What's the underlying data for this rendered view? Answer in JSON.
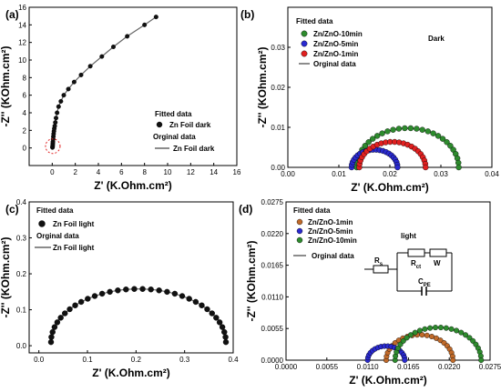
{
  "chart_data": [
    {
      "panel_label": "(a)",
      "type": "line",
      "xlabel": "Z' (K.Ohm.cm²)",
      "ylabel": "-Z'' (KOhm.cm²)",
      "xlim": [
        -2,
        16
      ],
      "ylim": [
        -2,
        16
      ],
      "xticks": [
        "0",
        "2",
        "4",
        "6",
        "8",
        "10",
        "12",
        "14",
        "16"
      ],
      "yticks": [
        "0",
        "2",
        "4",
        "6",
        "8",
        "10",
        "12",
        "14",
        "16"
      ],
      "legend": {
        "title": "Fitted data",
        "sub_title": "Orginal data",
        "fitted_label": "Zn Foil dark",
        "original_label": "Zn Foil dark"
      },
      "series": [
        {
          "name": "Zn Foil dark",
          "x": [
            0.02,
            0.03,
            0.04,
            0.05,
            0.06,
            0.08,
            0.1,
            0.12,
            0.15,
            0.18,
            0.22,
            0.27,
            0.33,
            0.42,
            0.55,
            0.75,
            1.0,
            1.4,
            1.9,
            2.5,
            3.3,
            4.3,
            5.3,
            6.5,
            8.0,
            9.0
          ],
          "y": [
            0.05,
            0.15,
            0.3,
            0.5,
            0.7,
            1.0,
            1.3,
            1.6,
            1.9,
            2.2,
            2.5,
            2.9,
            3.4,
            4.0,
            4.7,
            5.3,
            6.0,
            6.7,
            7.5,
            8.3,
            9.3,
            10.4,
            11.5,
            12.7,
            14.0,
            14.9
          ]
        }
      ],
      "annotation": "dashed red circle near origin"
    },
    {
      "panel_label": "(b)",
      "type": "scatter",
      "xlabel": "Z' (K.Ohm.cm²)",
      "ylabel": "-Z'' (KOhm.cm²)",
      "xlim": [
        0,
        0.04
      ],
      "ylim": [
        0,
        0.04
      ],
      "xticks": [
        "0.00",
        "0.01",
        "0.02",
        "0.03",
        "0.04"
      ],
      "yticks": [
        "0.00",
        "0.01",
        "0.02",
        "0.03"
      ],
      "legend": {
        "title": "Fitted data",
        "items": [
          "Zn/ZnO-10min",
          "Zn/ZnO-5min",
          "Zn/ZnO-1min"
        ],
        "line_label": "Orginal data",
        "note": "Dark"
      },
      "series": [
        {
          "name": "Zn/ZnO-10min",
          "color": "#2e8b2e",
          "center": 0.0235,
          "radius": 0.01,
          "n": 28
        },
        {
          "name": "Zn/ZnO-5min",
          "color": "#2a2ad0",
          "center": 0.017,
          "radius": 0.0045,
          "n": 22
        },
        {
          "name": "Zn/ZnO-1min",
          "color": "#e02020",
          "center": 0.0205,
          "radius": 0.0065,
          "n": 24
        }
      ]
    },
    {
      "panel_label": "(c)",
      "type": "line",
      "xlabel": "Z' (K.Ohm.cm²)",
      "ylabel": "-Z'' (KOhm.cm²)",
      "xlim": [
        -0.02,
        0.4
      ],
      "ylim": [
        -0.02,
        0.4
      ],
      "xticks": [
        "0.0",
        "0.1",
        "0.2",
        "0.3",
        "0.4"
      ],
      "yticks": [
        "0.0",
        "0.1",
        "0.2",
        "0.3",
        "0.4"
      ],
      "legend": {
        "title": "Fitted data",
        "fitted_label": "Zn Foil light",
        "sub_title": "Orginal data",
        "original_label": "Zn Foil light"
      },
      "series": [
        {
          "name": "Zn Foil light",
          "center": 0.205,
          "radius": 0.18,
          "peak": 0.148,
          "n": 34
        }
      ]
    },
    {
      "panel_label": "(d)",
      "type": "scatter",
      "xlabel": "Z' (K.Ohm.cm²)",
      "ylabel": "-Z'' (KOhm.cm²)",
      "xlim": [
        0,
        0.0275
      ],
      "ylim": [
        0,
        0.0275
      ],
      "xticks": [
        "0.0000",
        "0.0055",
        "0.0110",
        "0.0165",
        "0.0220",
        "0.0275"
      ],
      "yticks": [
        "0.0000",
        "0.0055",
        "0.0110",
        "0.0165",
        "0.0220",
        "0.0275"
      ],
      "legend": {
        "title": "Fitted data",
        "items": [
          "Zn/ZnO-1min",
          "Zn/ZnO-5min",
          "Zn/ZnO-10min"
        ],
        "line_label": "Orginal data",
        "note": "light"
      },
      "circuit": {
        "rs": "R",
        "rs_sub": "s",
        "rct": "R",
        "rct_sub": "ct",
        "w": "W",
        "cpe": "C",
        "cpe_sub": "PE"
      },
      "series": [
        {
          "name": "Zn/ZnO-1min",
          "color": "#c06a2a",
          "center": 0.018,
          "radius": 0.0045,
          "n": 22
        },
        {
          "name": "Zn/ZnO-5min",
          "color": "#2a2ad0",
          "center": 0.0135,
          "radius": 0.0025,
          "n": 18
        },
        {
          "name": "Zn/ZnO-10min",
          "color": "#2e8b2e",
          "center": 0.0205,
          "radius": 0.0058,
          "n": 26
        }
      ]
    }
  ]
}
